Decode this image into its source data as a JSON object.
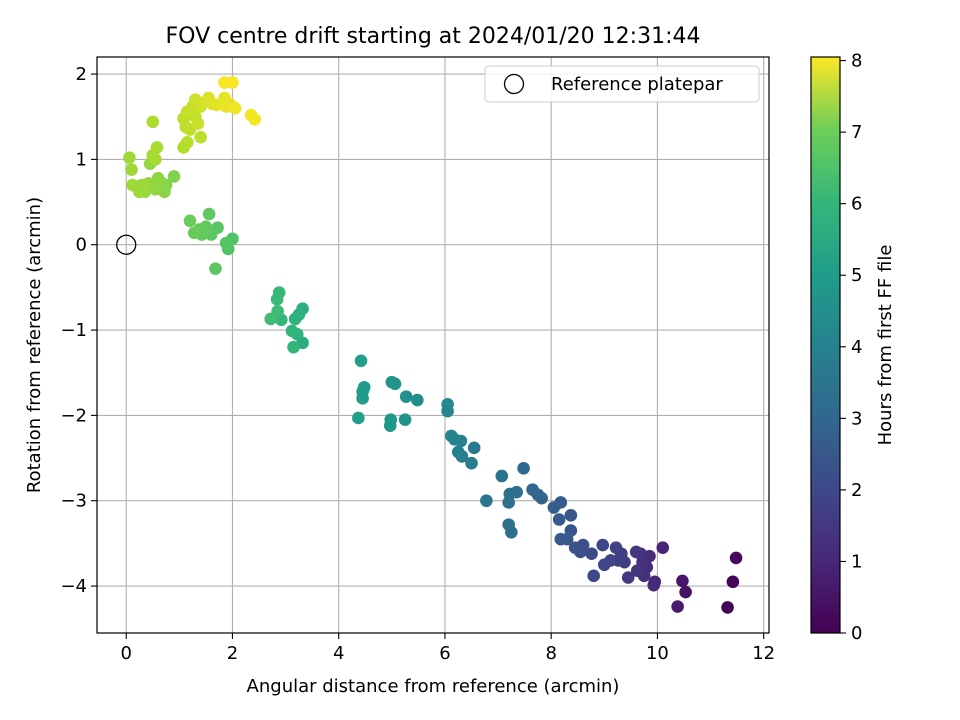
{
  "chart_data": {
    "type": "scatter",
    "title": "FOV centre drift starting at 2024/01/20 12:31:44",
    "xlabel": "Angular distance from reference (arcmin)",
    "ylabel": "Rotation from reference (arcmin)",
    "xlim": [
      -0.55,
      12.1
    ],
    "ylim": [
      -4.55,
      2.2
    ],
    "xticks": [
      0,
      2,
      4,
      6,
      8,
      10,
      12
    ],
    "yticks": [
      -4,
      -3,
      -2,
      -1,
      0,
      1,
      2
    ],
    "grid": true,
    "legend": {
      "placement": "top-right",
      "entries": [
        "Reference platepar"
      ]
    },
    "reference_point": {
      "x": 0,
      "y": 0,
      "label": "Reference platepar"
    },
    "colorbar": {
      "label": "Hours from first FF file",
      "colormap": "viridis",
      "range": [
        0,
        8.05
      ],
      "ticks": [
        0,
        1,
        2,
        3,
        4,
        5,
        6,
        7,
        8
      ]
    },
    "points": [
      [
        11.32,
        -4.25,
        0.05
      ],
      [
        11.42,
        -3.95,
        0.1
      ],
      [
        11.48,
        -3.67,
        0.15
      ],
      [
        10.53,
        -4.07,
        0.4
      ],
      [
        10.47,
        -3.94,
        0.5
      ],
      [
        10.38,
        -4.24,
        0.6
      ],
      [
        10.1,
        -3.55,
        0.8
      ],
      [
        9.95,
        -3.95,
        0.9
      ],
      [
        9.93,
        -3.99,
        0.95
      ],
      [
        9.85,
        -3.65,
        1.0
      ],
      [
        9.8,
        -3.78,
        1.05
      ],
      [
        9.75,
        -3.88,
        1.1
      ],
      [
        9.72,
        -3.72,
        1.15
      ],
      [
        9.68,
        -3.62,
        1.2
      ],
      [
        9.62,
        -3.82,
        1.25
      ],
      [
        9.6,
        -3.6,
        1.3
      ],
      [
        9.45,
        -3.9,
        1.4
      ],
      [
        9.38,
        -3.72,
        1.45
      ],
      [
        9.32,
        -3.62,
        1.5
      ],
      [
        9.26,
        -3.7,
        1.55
      ],
      [
        9.22,
        -3.55,
        1.6
      ],
      [
        9.12,
        -3.7,
        1.65
      ],
      [
        9.0,
        -3.75,
        1.7
      ],
      [
        8.97,
        -3.52,
        1.75
      ],
      [
        8.8,
        -3.88,
        1.8
      ],
      [
        8.76,
        -3.62,
        1.85
      ],
      [
        8.6,
        -3.52,
        1.95
      ],
      [
        8.55,
        -3.6,
        2.0
      ],
      [
        8.45,
        -3.55,
        2.05
      ],
      [
        8.37,
        -3.35,
        2.1
      ],
      [
        8.37,
        -3.17,
        2.15
      ],
      [
        8.3,
        -3.45,
        2.2
      ],
      [
        8.18,
        -3.45,
        2.25
      ],
      [
        8.15,
        -3.22,
        2.3
      ],
      [
        8.18,
        -3.02,
        2.35
      ],
      [
        8.05,
        -3.08,
        2.4
      ],
      [
        7.82,
        -2.97,
        2.55
      ],
      [
        7.75,
        -2.93,
        2.6
      ],
      [
        7.65,
        -2.87,
        2.65
      ],
      [
        7.48,
        -2.62,
        2.75
      ],
      [
        7.35,
        -2.9,
        2.85
      ],
      [
        7.25,
        -3.37,
        2.9
      ],
      [
        7.2,
        -3.28,
        2.92
      ],
      [
        7.22,
        -2.92,
        2.95
      ],
      [
        7.2,
        -3.02,
        3.0
      ],
      [
        7.07,
        -2.71,
        3.05
      ],
      [
        6.78,
        -3.0,
        3.15
      ],
      [
        6.55,
        -2.38,
        3.3
      ],
      [
        6.5,
        -2.56,
        3.35
      ],
      [
        6.32,
        -2.48,
        3.45
      ],
      [
        6.3,
        -2.3,
        3.5
      ],
      [
        6.25,
        -2.43,
        3.55
      ],
      [
        6.18,
        -2.28,
        3.6
      ],
      [
        6.12,
        -2.24,
        3.65
      ],
      [
        6.05,
        -1.95,
        3.75
      ],
      [
        6.05,
        -1.87,
        3.8
      ],
      [
        5.48,
        -1.82,
        4.0
      ],
      [
        5.27,
        -1.78,
        4.05
      ],
      [
        5.25,
        -2.05,
        4.1
      ],
      [
        5.06,
        -1.63,
        4.15
      ],
      [
        5.0,
        -1.61,
        4.2
      ],
      [
        4.98,
        -2.05,
        4.25
      ],
      [
        4.97,
        -2.12,
        4.3
      ],
      [
        4.48,
        -1.67,
        4.35
      ],
      [
        4.45,
        -1.8,
        4.4
      ],
      [
        4.45,
        -1.72,
        4.45
      ],
      [
        4.42,
        -1.36,
        4.5
      ],
      [
        4.37,
        -2.03,
        4.55
      ],
      [
        3.32,
        -1.15,
        5.0
      ],
      [
        3.32,
        -0.75,
        5.05
      ],
      [
        3.25,
        -0.82,
        5.1
      ],
      [
        3.22,
        -1.05,
        5.15
      ],
      [
        3.18,
        -0.87,
        5.2
      ],
      [
        3.15,
        -1.2,
        5.25
      ],
      [
        3.12,
        -1.01,
        5.3
      ],
      [
        2.92,
        -0.88,
        5.35
      ],
      [
        2.88,
        -0.56,
        5.4
      ],
      [
        2.84,
        -0.64,
        5.45
      ],
      [
        2.85,
        -0.78,
        5.5
      ],
      [
        2.72,
        -0.87,
        5.55
      ],
      [
        2.0,
        0.07,
        5.8
      ],
      [
        1.92,
        -0.05,
        5.85
      ],
      [
        1.88,
        0.02,
        5.9
      ],
      [
        1.72,
        0.2,
        5.95
      ],
      [
        1.68,
        -0.28,
        5.98
      ],
      [
        1.6,
        0.12,
        6.0
      ],
      [
        1.56,
        0.36,
        6.05
      ],
      [
        1.5,
        0.21,
        6.08
      ],
      [
        1.42,
        0.12,
        6.1
      ],
      [
        1.38,
        0.18,
        6.12
      ],
      [
        1.28,
        0.14,
        6.15
      ],
      [
        1.2,
        0.28,
        6.2
      ],
      [
        0.9,
        0.8,
        6.5
      ],
      [
        0.75,
        0.7,
        6.55
      ],
      [
        0.72,
        0.62,
        6.6
      ],
      [
        0.68,
        0.72,
        6.62
      ],
      [
        0.6,
        0.78,
        6.65
      ],
      [
        0.55,
        0.65,
        6.7
      ],
      [
        0.5,
        0.68,
        6.72
      ],
      [
        0.45,
        0.95,
        6.75
      ],
      [
        0.42,
        0.72,
        6.78
      ],
      [
        0.35,
        0.62,
        6.8
      ],
      [
        0.3,
        0.7,
        6.82
      ],
      [
        0.25,
        0.62,
        6.85
      ],
      [
        0.2,
        0.68,
        6.86
      ],
      [
        0.12,
        0.7,
        6.87
      ],
      [
        0.1,
        0.88,
        6.88
      ],
      [
        0.06,
        1.02,
        6.9
      ],
      [
        0.5,
        1.05,
        6.95
      ],
      [
        0.55,
        1.0,
        6.97
      ],
      [
        0.58,
        1.14,
        7.0
      ],
      [
        0.5,
        1.44,
        7.05
      ],
      [
        1.08,
        1.14,
        7.1
      ],
      [
        1.15,
        1.2,
        7.15
      ],
      [
        1.12,
        1.38,
        7.2
      ],
      [
        1.4,
        1.26,
        7.22
      ],
      [
        1.08,
        1.48,
        7.25
      ],
      [
        1.2,
        1.35,
        7.28
      ],
      [
        1.3,
        1.5,
        7.3
      ],
      [
        1.25,
        1.62,
        7.35
      ],
      [
        1.15,
        1.56,
        7.38
      ],
      [
        1.35,
        1.42,
        7.4
      ],
      [
        1.3,
        1.7,
        7.45
      ],
      [
        1.4,
        1.62,
        7.5
      ],
      [
        1.5,
        1.68,
        7.55
      ],
      [
        1.55,
        1.72,
        7.6
      ],
      [
        1.62,
        1.65,
        7.65
      ],
      [
        1.7,
        1.64,
        7.7
      ],
      [
        1.85,
        1.72,
        7.75
      ],
      [
        1.88,
        1.62,
        7.78
      ],
      [
        1.95,
        1.65,
        7.8
      ],
      [
        2.05,
        1.6,
        7.85
      ],
      [
        2.35,
        1.52,
        7.9
      ],
      [
        2.42,
        1.47,
        7.92
      ],
      [
        1.85,
        1.9,
        7.95
      ],
      [
        2.0,
        1.9,
        8.0
      ]
    ]
  }
}
